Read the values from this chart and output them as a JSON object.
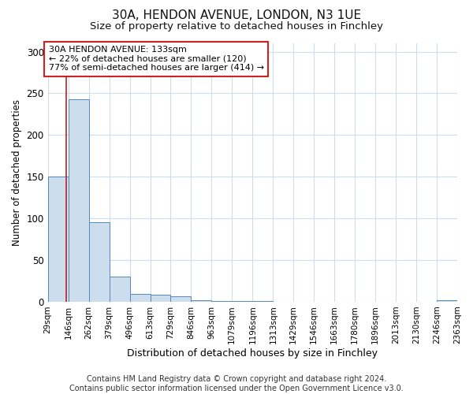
{
  "title": "30A, HENDON AVENUE, LONDON, N3 1UE",
  "subtitle": "Size of property relative to detached houses in Finchley",
  "xlabel": "Distribution of detached houses by size in Finchley",
  "ylabel": "Number of detached properties",
  "bar_edges": [
    29,
    146,
    262,
    379,
    496,
    613,
    729,
    846,
    963,
    1079,
    1196,
    1313,
    1429,
    1546,
    1663,
    1780,
    1896,
    2013,
    2130,
    2246,
    2363
  ],
  "bar_heights": [
    150,
    243,
    95,
    30,
    9,
    8,
    6,
    2,
    1,
    1,
    1,
    0,
    0,
    0,
    0,
    0,
    0,
    0,
    0,
    2
  ],
  "bar_color": "#ccdded",
  "bar_edgecolor": "#5588bb",
  "property_size": 133,
  "vline_color": "#bb2222",
  "annotation_text": "30A HENDON AVENUE: 133sqm\n← 22% of detached houses are smaller (120)\n77% of semi-detached houses are larger (414) →",
  "annotation_boxcolor": "white",
  "annotation_edgecolor": "#cc2222",
  "footer": "Contains HM Land Registry data © Crown copyright and database right 2024.\nContains public sector information licensed under the Open Government Licence v3.0.",
  "ylim": [
    0,
    310
  ],
  "background_color": "#ffffff",
  "title_fontsize": 11,
  "subtitle_fontsize": 9.5,
  "tick_fontsize": 7.5
}
